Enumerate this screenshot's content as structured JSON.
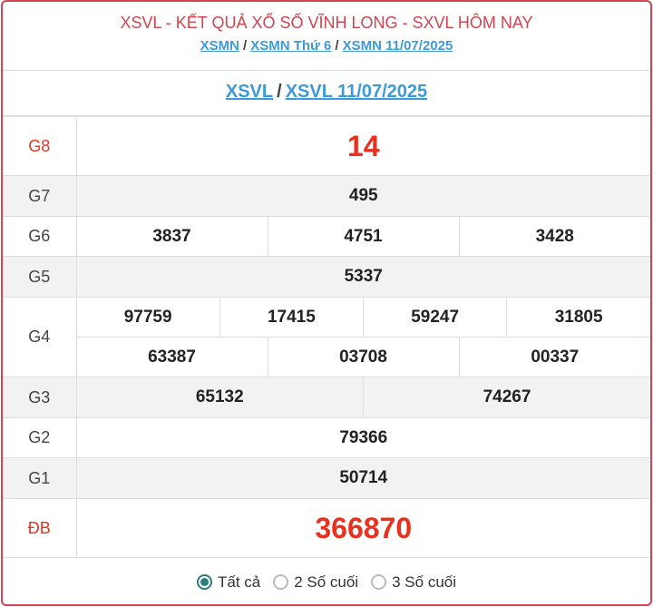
{
  "header": {
    "title": "XSVL - KẾT QUẢ XỔ SỐ VĨNH LONG - SXVL HÔM NAY",
    "breadcrumb": [
      "XSMN",
      "XSMN Thứ 6",
      "XSMN 11/07/2025"
    ],
    "sub": [
      "XSVL",
      "XSVL 11/07/2025"
    ],
    "sep": "/"
  },
  "prizes": {
    "g8": {
      "label": "G8",
      "values": [
        "14"
      ]
    },
    "g7": {
      "label": "G7",
      "values": [
        "495"
      ]
    },
    "g6": {
      "label": "G6",
      "values": [
        "3837",
        "4751",
        "3428"
      ]
    },
    "g5": {
      "label": "G5",
      "values": [
        "5337"
      ]
    },
    "g4": {
      "label": "G4",
      "values": [
        "97759",
        "17415",
        "59247",
        "31805",
        "63387",
        "03708",
        "00337"
      ]
    },
    "g3": {
      "label": "G3",
      "values": [
        "65132",
        "74267"
      ]
    },
    "g2": {
      "label": "G2",
      "values": [
        "79366"
      ]
    },
    "g1": {
      "label": "G1",
      "values": [
        "50714"
      ]
    },
    "db": {
      "label": "ĐB",
      "values": [
        "366870"
      ]
    }
  },
  "filter": {
    "options": [
      "Tất cả",
      "2 Số cuối",
      "3 Số cuối"
    ],
    "selected": "Tất cả"
  },
  "colors": {
    "accent": "#d0454f",
    "link": "#3d9ad8",
    "prize": "#e8321f",
    "radio": "#2c7e7e"
  }
}
